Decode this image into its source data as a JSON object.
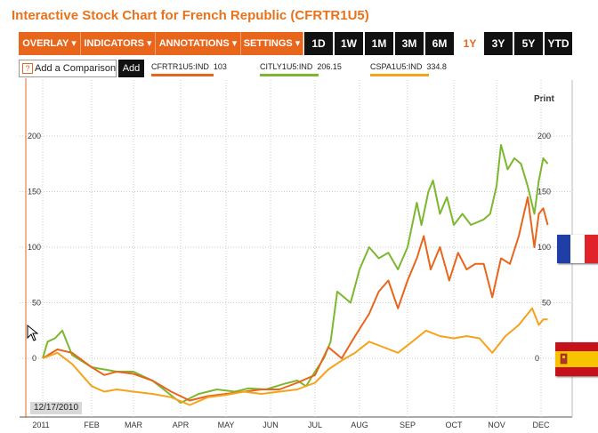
{
  "title": "Interactive Stock Chart for French Republic (CFRTR1U5)",
  "menus": [
    {
      "label": "OVERLAY ▾"
    },
    {
      "label": "INDICATORS ▾"
    },
    {
      "label": "ANNOTATIONS ▾"
    },
    {
      "label": "SETTINGS ▾"
    }
  ],
  "ranges": [
    {
      "label": "1D"
    },
    {
      "label": "1W"
    },
    {
      "label": "1M"
    },
    {
      "label": "3M"
    },
    {
      "label": "6M"
    },
    {
      "label": "1Y"
    },
    {
      "label": "3Y"
    },
    {
      "label": "5Y"
    },
    {
      "label": "YTD"
    }
  ],
  "active_range": "1Y",
  "comparison": {
    "help": "?",
    "placeholder": "Add a Comparison",
    "add_label": "Add"
  },
  "legend": [
    {
      "label": "CFRTR1U5:IND",
      "value": "103",
      "color": "#e8651c"
    },
    {
      "label": "CITLY1U5:IND",
      "value": "206.15",
      "color": "#7cb82f"
    },
    {
      "label": "CSPA1U5:IND",
      "value": "334.8",
      "color": "#f5a31c"
    }
  ],
  "print_label": "Print",
  "crosshair_date": "12/17/2010",
  "flags": [
    "france-flag",
    "spain-flag"
  ],
  "chart_data": {
    "type": "line",
    "yticks": [
      0,
      50,
      100,
      150,
      200
    ],
    "ylim": [
      -50,
      210
    ],
    "x_labels": [
      "2011",
      "FEB",
      "MAR",
      "APR",
      "MAY",
      "JUN",
      "JUL",
      "AUG",
      "SEP",
      "OCT",
      "NOV",
      "DEC"
    ],
    "series": [
      {
        "name": "CITLY1U5:IND",
        "color": "#7cb82f",
        "points": [
          [
            0,
            0
          ],
          [
            0.1,
            15
          ],
          [
            0.25,
            18
          ],
          [
            0.4,
            25
          ],
          [
            0.6,
            3
          ],
          [
            1,
            -8
          ],
          [
            1.3,
            -10
          ],
          [
            1.6,
            -12
          ],
          [
            2,
            -12
          ],
          [
            2.4,
            -20
          ],
          [
            2.7,
            -30
          ],
          [
            3,
            -40
          ],
          [
            3.4,
            -32
          ],
          [
            3.8,
            -28
          ],
          [
            4.2,
            -30
          ],
          [
            4.5,
            -27
          ],
          [
            4.9,
            -28
          ],
          [
            5.3,
            -23
          ],
          [
            5.6,
            -20
          ],
          [
            5.8,
            -25
          ],
          [
            6,
            -12
          ],
          [
            6.2,
            0
          ],
          [
            6.35,
            15
          ],
          [
            6.5,
            60
          ],
          [
            6.8,
            50
          ],
          [
            7,
            80
          ],
          [
            7.2,
            100
          ],
          [
            7.4,
            90
          ],
          [
            7.6,
            95
          ],
          [
            7.8,
            80
          ],
          [
            8,
            100
          ],
          [
            8.1,
            120
          ],
          [
            8.2,
            140
          ],
          [
            8.3,
            120
          ],
          [
            8.45,
            150
          ],
          [
            8.55,
            160
          ],
          [
            8.7,
            130
          ],
          [
            8.85,
            145
          ],
          [
            9,
            120
          ],
          [
            9.2,
            130
          ],
          [
            9.4,
            120
          ],
          [
            9.7,
            125
          ],
          [
            9.85,
            130
          ],
          [
            10,
            155
          ],
          [
            10.1,
            192
          ],
          [
            10.25,
            170
          ],
          [
            10.4,
            180
          ],
          [
            10.55,
            175
          ],
          [
            10.7,
            155
          ],
          [
            10.85,
            130
          ],
          [
            10.95,
            160
          ],
          [
            11.05,
            180
          ],
          [
            11.15,
            175
          ]
        ]
      },
      {
        "name": "CFRTR1U5:IND",
        "color": "#e8651c",
        "points": [
          [
            0,
            0
          ],
          [
            0.3,
            8
          ],
          [
            0.6,
            5
          ],
          [
            1,
            -8
          ],
          [
            1.3,
            -15
          ],
          [
            1.6,
            -12
          ],
          [
            2,
            -14
          ],
          [
            2.4,
            -20
          ],
          [
            2.8,
            -30
          ],
          [
            3.2,
            -38
          ],
          [
            3.6,
            -34
          ],
          [
            4,
            -32
          ],
          [
            4.4,
            -30
          ],
          [
            4.8,
            -28
          ],
          [
            5.2,
            -28
          ],
          [
            5.6,
            -22
          ],
          [
            6,
            -15
          ],
          [
            6.3,
            10
          ],
          [
            6.6,
            0
          ],
          [
            6.9,
            20
          ],
          [
            7.2,
            40
          ],
          [
            7.4,
            60
          ],
          [
            7.6,
            70
          ],
          [
            7.8,
            45
          ],
          [
            8,
            70
          ],
          [
            8.2,
            90
          ],
          [
            8.35,
            110
          ],
          [
            8.5,
            80
          ],
          [
            8.7,
            100
          ],
          [
            8.9,
            70
          ],
          [
            9.1,
            95
          ],
          [
            9.3,
            80
          ],
          [
            9.5,
            85
          ],
          [
            9.7,
            85
          ],
          [
            9.9,
            55
          ],
          [
            10.1,
            90
          ],
          [
            10.3,
            85
          ],
          [
            10.5,
            110
          ],
          [
            10.7,
            145
          ],
          [
            10.85,
            100
          ],
          [
            10.95,
            130
          ],
          [
            11.05,
            135
          ],
          [
            11.15,
            120
          ]
        ]
      },
      {
        "name": "CSPA1U5:IND",
        "color": "#f5a31c",
        "points": [
          [
            0,
            0
          ],
          [
            0.3,
            5
          ],
          [
            0.6,
            -5
          ],
          [
            1,
            -25
          ],
          [
            1.3,
            -30
          ],
          [
            1.6,
            -28
          ],
          [
            2,
            -30
          ],
          [
            2.4,
            -32
          ],
          [
            2.8,
            -35
          ],
          [
            3.2,
            -42
          ],
          [
            3.6,
            -35
          ],
          [
            4,
            -33
          ],
          [
            4.4,
            -30
          ],
          [
            4.8,
            -32
          ],
          [
            5.2,
            -30
          ],
          [
            5.6,
            -28
          ],
          [
            6,
            -22
          ],
          [
            6.3,
            -10
          ],
          [
            6.6,
            -2
          ],
          [
            6.9,
            5
          ],
          [
            7.2,
            15
          ],
          [
            7.5,
            10
          ],
          [
            7.8,
            5
          ],
          [
            8.1,
            15
          ],
          [
            8.4,
            25
          ],
          [
            8.7,
            20
          ],
          [
            9,
            18
          ],
          [
            9.3,
            20
          ],
          [
            9.6,
            18
          ],
          [
            9.9,
            5
          ],
          [
            10.2,
            20
          ],
          [
            10.5,
            30
          ],
          [
            10.8,
            45
          ],
          [
            10.95,
            30
          ],
          [
            11.05,
            35
          ],
          [
            11.15,
            35
          ]
        ]
      }
    ]
  }
}
